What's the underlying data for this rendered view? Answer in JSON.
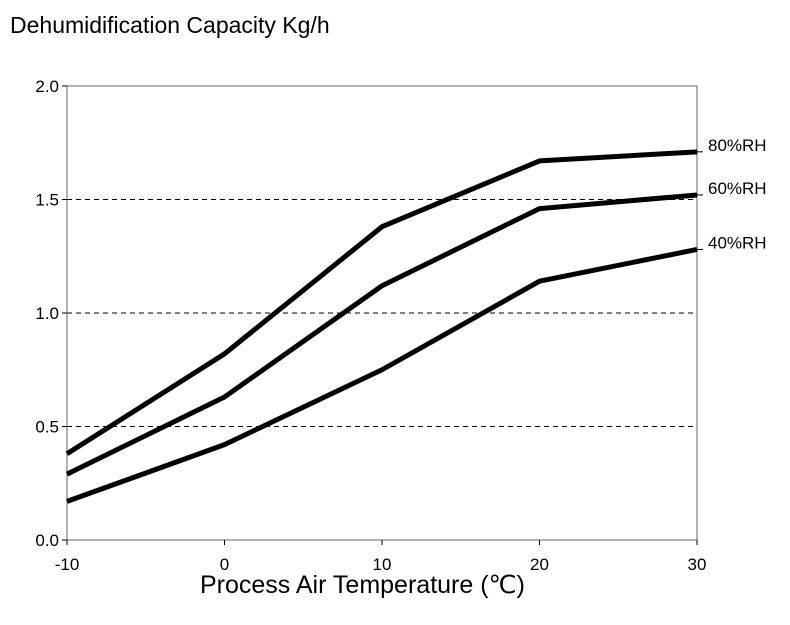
{
  "chart_data": {
    "type": "line",
    "title": "Dehumidification Capacity Kg/h",
    "xlabel": "Process Air Temperature (℃)",
    "ylabel": "",
    "x": [
      -10,
      0,
      10,
      20,
      30
    ],
    "xticks": [
      "-10",
      "0",
      "10",
      "20",
      "30"
    ],
    "yticks": [
      "0.0",
      "0.5",
      "1.0",
      "1.5",
      "2.0"
    ],
    "xlim": [
      -10,
      30
    ],
    "ylim": [
      0,
      2
    ],
    "grid": "horizontal dashed",
    "legend": "series labels at right end of lines",
    "series": [
      {
        "name": "80%RH",
        "values": [
          0.38,
          0.82,
          1.38,
          1.67,
          1.71
        ]
      },
      {
        "name": "60%RH",
        "values": [
          0.29,
          0.63,
          1.12,
          1.46,
          1.52
        ]
      },
      {
        "name": "40%RH",
        "values": [
          0.17,
          0.42,
          0.75,
          1.14,
          1.28
        ]
      }
    ],
    "line_color": "#000000",
    "grid_color": "#000000"
  }
}
